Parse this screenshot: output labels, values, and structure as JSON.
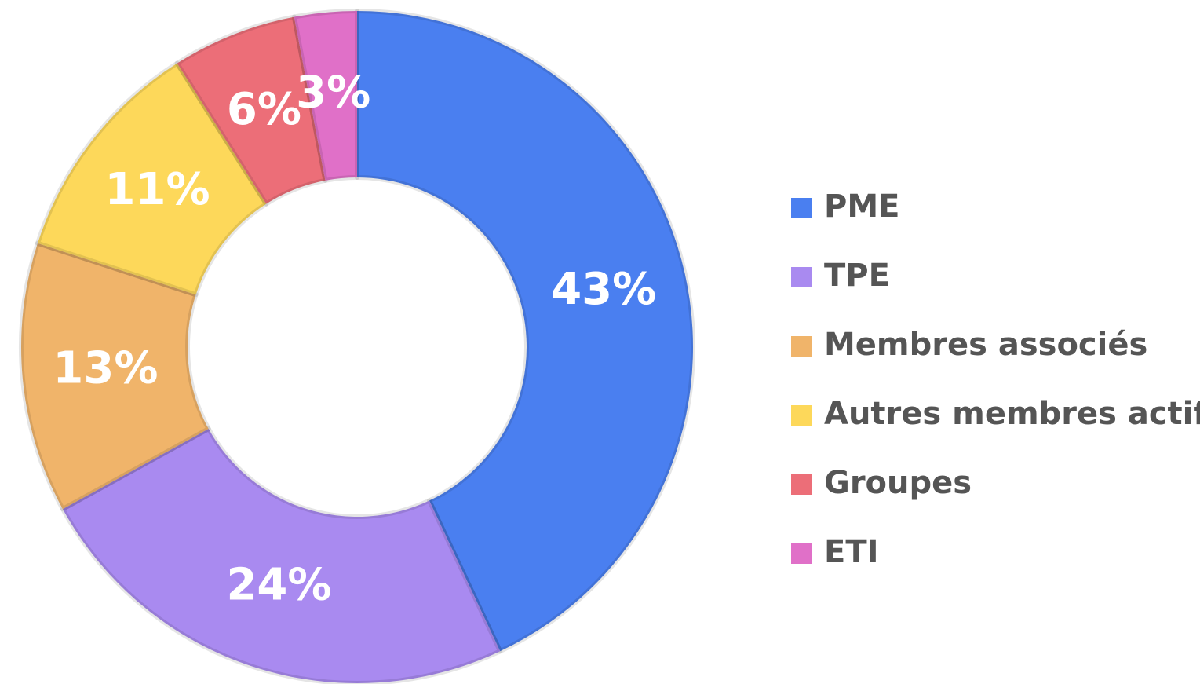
{
  "chart_data": {
    "type": "donut",
    "categories": [
      "PME",
      "TPE",
      "Membres associés",
      "Autres membres actifs",
      "Groupes",
      "ETI"
    ],
    "values": [
      43,
      24,
      13,
      11,
      6,
      3
    ],
    "value_labels": [
      "43%",
      "24%",
      "13%",
      "11%",
      "6%",
      "3%"
    ],
    "colors": [
      "#4a7ff0",
      "#a98af0",
      "#f0b46a",
      "#fdd85a",
      "#ec6e78",
      "#e070c8"
    ],
    "legend": "right"
  }
}
